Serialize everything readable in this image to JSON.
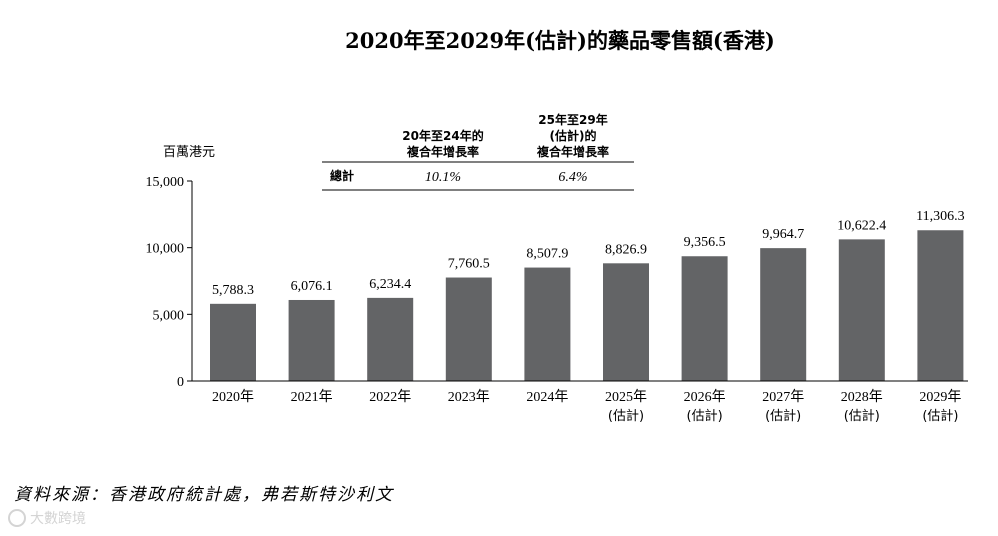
{
  "chart_data": {
    "type": "bar",
    "title": "2020年至2029年(估計)的藥品零售額(香港)",
    "unit_label": "百萬港元",
    "categories": [
      {
        "year": "2020年",
        "sub": ""
      },
      {
        "year": "2021年",
        "sub": ""
      },
      {
        "year": "2022年",
        "sub": ""
      },
      {
        "year": "2023年",
        "sub": ""
      },
      {
        "year": "2024年",
        "sub": ""
      },
      {
        "year": "2025年",
        "sub": "(估計)"
      },
      {
        "year": "2026年",
        "sub": "(估計)"
      },
      {
        "year": "2027年",
        "sub": "(估計)"
      },
      {
        "year": "2028年",
        "sub": "(估計)"
      },
      {
        "year": "2029年",
        "sub": "(估計)"
      }
    ],
    "values": [
      5788.3,
      6076.1,
      6234.4,
      7760.5,
      8507.9,
      8826.9,
      9356.5,
      9964.7,
      10622.4,
      11306.3
    ],
    "value_labels": [
      "5,788.3",
      "6,076.1",
      "6,234.4",
      "7,760.5",
      "8,507.9",
      "8,826.9",
      "9,356.5",
      "9,964.7",
      "10,622.4",
      "11,306.3"
    ],
    "ylim": [
      0,
      15000
    ],
    "yticks": [
      0,
      5000,
      10000,
      15000
    ],
    "ytick_labels": [
      "0",
      "5,000",
      "10,000",
      "15,000"
    ],
    "bar_color": "#636466",
    "grid": false,
    "cagr_table": {
      "headers": [
        [
          "20年至24年的",
          "複合年增長率"
        ],
        [
          "25年至29年",
          "(估計)的",
          "複合年增長率"
        ]
      ],
      "row_label": "總計",
      "values": [
        "10.1%",
        "6.4%"
      ]
    }
  },
  "source_note": "資料來源：香港政府統計處，弗若斯特沙利文",
  "watermark": "大數跨境"
}
